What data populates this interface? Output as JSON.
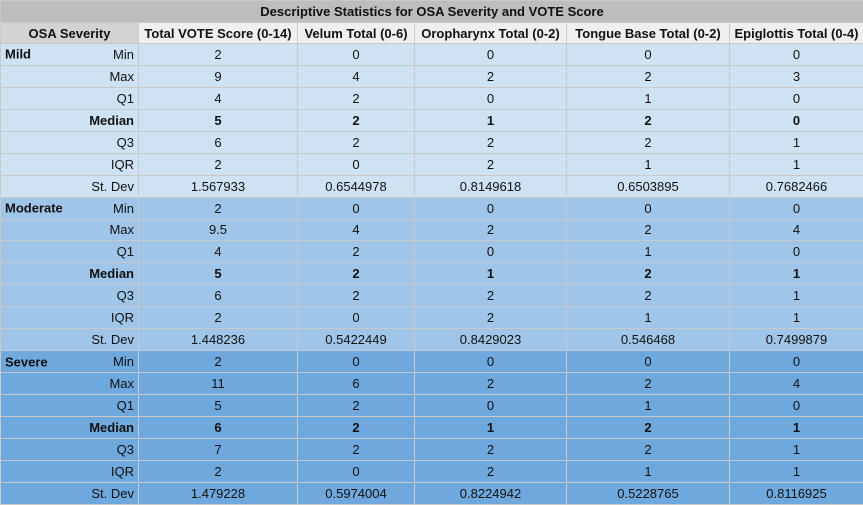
{
  "title": "Descriptive Statistics for OSA Severity and VOTE Score",
  "headers": [
    "OSA Severity",
    "Total VOTE Score (0-14)",
    "Velum Total (0-6)",
    "Oropharynx Total (0-2)",
    "Tongue Base Total (0-2)",
    "Epiglottis Total (0-4)"
  ],
  "groups": [
    {
      "name": "Mild",
      "rows": [
        {
          "stat": "Min",
          "values": [
            "2",
            "0",
            "0",
            "0",
            "0"
          ]
        },
        {
          "stat": "Max",
          "values": [
            "9",
            "4",
            "2",
            "2",
            "3"
          ]
        },
        {
          "stat": "Q1",
          "values": [
            "4",
            "2",
            "0",
            "1",
            "0"
          ]
        },
        {
          "stat": "Median",
          "values": [
            "5",
            "2",
            "1",
            "2",
            "0"
          ]
        },
        {
          "stat": "Q3",
          "values": [
            "6",
            "2",
            "2",
            "2",
            "1"
          ]
        },
        {
          "stat": "IQR",
          "values": [
            "2",
            "0",
            "2",
            "1",
            "1"
          ]
        },
        {
          "stat": "St. Dev",
          "values": [
            "1.567933",
            "0.6544978",
            "0.8149618",
            "0.6503895",
            "0.7682466"
          ]
        }
      ]
    },
    {
      "name": "Moderate",
      "rows": [
        {
          "stat": "Min",
          "values": [
            "2",
            "0",
            "0",
            "0",
            "0"
          ]
        },
        {
          "stat": "Max",
          "values": [
            "9.5",
            "4",
            "2",
            "2",
            "4"
          ]
        },
        {
          "stat": "Q1",
          "values": [
            "4",
            "2",
            "0",
            "1",
            "0"
          ]
        },
        {
          "stat": "Median",
          "values": [
            "5",
            "2",
            "1",
            "2",
            "1"
          ]
        },
        {
          "stat": "Q3",
          "values": [
            "6",
            "2",
            "2",
            "2",
            "1"
          ]
        },
        {
          "stat": "IQR",
          "values": [
            "2",
            "0",
            "2",
            "1",
            "1"
          ]
        },
        {
          "stat": "St. Dev",
          "values": [
            "1.448236",
            "0.5422449",
            "0.8429023",
            "0.546468",
            "0.7499879"
          ]
        }
      ]
    },
    {
      "name": "Severe",
      "rows": [
        {
          "stat": "Min",
          "values": [
            "2",
            "0",
            "0",
            "0",
            "0"
          ]
        },
        {
          "stat": "Max",
          "values": [
            "11",
            "6",
            "2",
            "2",
            "4"
          ]
        },
        {
          "stat": "Q1",
          "values": [
            "5",
            "2",
            "0",
            "1",
            "0"
          ]
        },
        {
          "stat": "Median",
          "values": [
            "6",
            "2",
            "1",
            "2",
            "1"
          ]
        },
        {
          "stat": "Q3",
          "values": [
            "7",
            "2",
            "2",
            "2",
            "1"
          ]
        },
        {
          "stat": "IQR",
          "values": [
            "2",
            "0",
            "2",
            "1",
            "1"
          ]
        },
        {
          "stat": "St. Dev",
          "values": [
            "1.479228",
            "0.5974004",
            "0.8224942",
            "0.5228765",
            "0.8116925"
          ]
        }
      ]
    }
  ],
  "colors": {
    "mild": "#cfe2f3",
    "moderate": "#9fc5e8",
    "severe": "#6fa8dc",
    "title_bg": "#bdbdbd",
    "header_bg": "#efefef"
  }
}
